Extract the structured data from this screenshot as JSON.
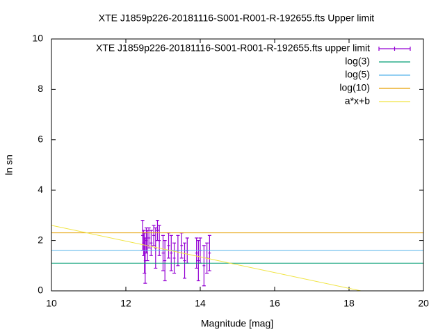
{
  "chart_data": {
    "type": "line",
    "title": "XTE J1859p226-20181116-S001-R001-R-192655.fts Upper limit",
    "xlabel": "Magnitude [mag]",
    "ylabel": "ln sn",
    "xlim": [
      10,
      20
    ],
    "ylim": [
      0,
      10
    ],
    "xticks": [
      10,
      12,
      14,
      16,
      18,
      20
    ],
    "yticks": [
      0,
      2,
      4,
      6,
      8,
      10
    ],
    "legend": "top right",
    "series": [
      {
        "name": "XTE J1859p226-20181116-S001-R001-R-192655.fts upper limit",
        "color": "#9400d3",
        "style": "errorbars",
        "x": [
          12.45,
          12.48,
          12.5,
          12.52,
          12.55,
          12.58,
          12.62,
          12.68,
          12.75,
          12.8,
          12.85,
          12.9,
          13.0,
          13.05,
          13.15,
          13.22,
          13.3,
          13.4,
          13.5,
          13.58,
          13.65,
          13.9,
          13.95,
          14.0,
          14.1,
          14.18,
          14.25
        ],
        "values": [
          2.2,
          1.9,
          1.5,
          1.2,
          2.0,
          1.8,
          2.1,
          1.9,
          2.2,
          1.7,
          2.4,
          2.0,
          1.5,
          1.2,
          1.8,
          1.5,
          1.3,
          1.6,
          1.8,
          1.2,
          1.6,
          1.5,
          1.2,
          1.6,
          1.0,
          1.3,
          1.5
        ],
        "errors": [
          0.6,
          0.5,
          0.8,
          0.9,
          0.5,
          0.6,
          0.4,
          0.5,
          0.4,
          0.8,
          0.4,
          0.6,
          0.7,
          0.8,
          0.5,
          0.7,
          0.6,
          0.6,
          0.5,
          0.7,
          0.5,
          0.6,
          0.8,
          0.5,
          0.8,
          0.6,
          0.7
        ]
      },
      {
        "name": "log(3)",
        "color": "#009e73",
        "style": "lines",
        "x": [
          10,
          20
        ],
        "values": [
          1.0986,
          1.0986
        ]
      },
      {
        "name": "log(5)",
        "color": "#56b4e9",
        "style": "lines",
        "x": [
          10,
          20
        ],
        "values": [
          1.6094,
          1.6094
        ]
      },
      {
        "name": "log(10)",
        "color": "#e69f00",
        "style": "lines",
        "x": [
          10,
          20
        ],
        "values": [
          2.3026,
          2.3026
        ]
      },
      {
        "name": "a*x+b",
        "color": "#f0e442",
        "style": "lines",
        "x": [
          10,
          18.32
        ],
        "values": [
          2.6,
          0
        ]
      }
    ]
  }
}
